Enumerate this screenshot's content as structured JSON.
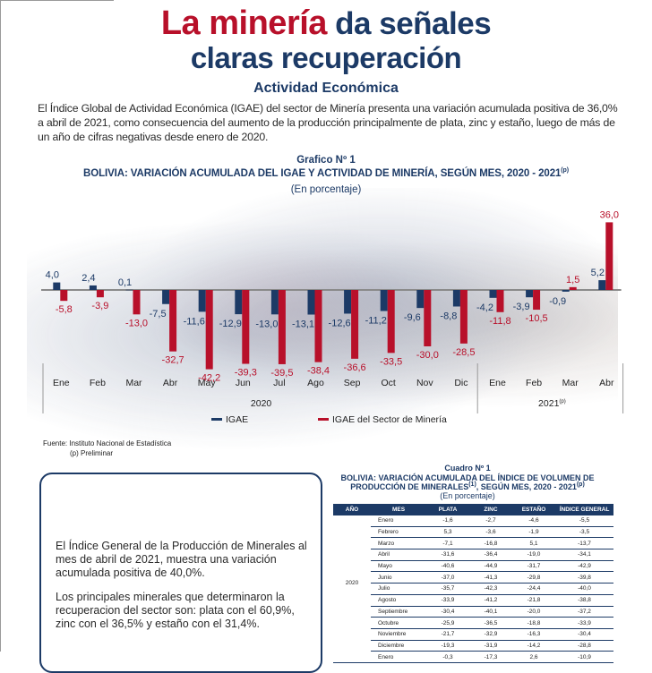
{
  "headline": {
    "highlight": "La minería",
    "rest_line1": "da señales",
    "line2": "claras recuperación"
  },
  "section_title": "Actividad Económica",
  "intro_text": "El Índice Global de Actividad Económica (IGAE) del sector de Minería presenta una variación acumulada positiva de 36,0% a abril de 2021, como consecuencia del aumento de la producción principalmente de plata, zinc y estaño, luego de más de un año de cifras negativas desde enero de 2020.",
  "colors": {
    "navy": "#1c3a66",
    "red": "#b8102a"
  },
  "chart_data": {
    "type": "bar",
    "title": "Grafico Nº 1",
    "subtitle": "BOLIVIA: VARIACIÓN ACUMULADA DEL IGAE Y ACTIVIDAD DE MINERÍA, SEGÚN MES, 2020 - 2021",
    "subtitle_sup": "(p)",
    "unit_label": "(En porcentaje)",
    "categories": [
      "Ene",
      "Feb",
      "Mar",
      "Abr",
      "May",
      "Jun",
      "Jul",
      "Ago",
      "Sep",
      "Oct",
      "Nov",
      "Dic",
      "Ene",
      "Feb",
      "Mar",
      "Abr"
    ],
    "groups": [
      {
        "label": "2020",
        "sup": "",
        "count": 12
      },
      {
        "label": "2021",
        "sup": "(p)",
        "count": 4
      }
    ],
    "series": [
      {
        "name": "IGAE",
        "color": "#1c3a66",
        "values": [
          4.0,
          2.4,
          0.1,
          -7.5,
          -11.6,
          -12.9,
          -13.0,
          -13.1,
          -12.6,
          -11.2,
          -9.6,
          -8.8,
          -4.2,
          -3.9,
          -0.9,
          5.2
        ]
      },
      {
        "name": "IGAE del Sector de Minería",
        "color": "#b8102a",
        "values": [
          -5.8,
          -3.9,
          -13.0,
          -32.7,
          -42.2,
          -39.3,
          -39.5,
          -38.4,
          -36.6,
          -33.5,
          -30.0,
          -28.5,
          -11.8,
          -10.5,
          1.5,
          36.0
        ]
      }
    ],
    "labels": {
      "IGAE": [
        "4,0",
        "2,4",
        "0,1",
        "-7,5",
        "-11,6",
        "-12,9",
        "-13,0",
        "-13,1",
        "-12,6",
        "-11,2",
        "-9,6",
        "-8,8",
        "-4,2",
        "-3,9",
        "-0,9",
        "5,2"
      ],
      "Mineria": [
        "-5,8",
        "-3,9",
        "-13,0",
        "-32,7",
        "-42,2",
        "-39,3",
        "-39,5",
        "-38,4",
        "-36,6",
        "-33,5",
        "-30,0",
        "-28,5",
        "-11,8",
        "-10,5",
        "1,5",
        "36,0"
      ]
    },
    "xlabel": "",
    "ylabel": "",
    "ylim": [
      -45,
      38
    ],
    "grid": false,
    "legend": "bottom"
  },
  "source": {
    "line1": "Fuente: Instituto Nacional de Estadística",
    "line2": "(p) Preliminar"
  },
  "textbox": {
    "para1": "El Índice General de la Producción de Minerales al mes de abril de 2021, muestra una variación acumulada positiva de 40,0%.",
    "para2": "Los principales minerales que determinaron la recuperacion del sector son: plata con el 60,9%, zinc con el 36,5% y estaño con el 31,4%."
  },
  "table": {
    "title": "Cuadro Nº 1",
    "subtitle1": "BOLIVIA: VARIACIÓN ACUMULADA DEL ÍNDICE DE VOLUMEN DE",
    "subtitle2": "PRODUCCIÓN DE MINERALES",
    "subtitle2_sup": "(1)",
    "subtitle2_rest": ", SEGÚN MES, 2020 - 2021",
    "subtitle2_sup2": "(p)",
    "unit": "(En porcentaje)",
    "headers": [
      "AÑO",
      "MES",
      "PLATA",
      "ZINC",
      "ESTAÑO",
      "ÍNDICE GENERAL"
    ],
    "year_2020": "2020",
    "rows": [
      {
        "mes": "Enero",
        "plata": "-1,6",
        "zinc": "-2,7",
        "estano": "-4,6",
        "general": "-5,5"
      },
      {
        "mes": "Febrero",
        "plata": "5,3",
        "zinc": "-3,6",
        "estano": "-1,9",
        "general": "-3,5"
      },
      {
        "mes": "Marzo",
        "plata": "-7,1",
        "zinc": "-16,8",
        "estano": "5,1",
        "general": "-13,7"
      },
      {
        "mes": "Abril",
        "plata": "-31,6",
        "zinc": "-36,4",
        "estano": "-19,0",
        "general": "-34,1"
      },
      {
        "mes": "Mayo",
        "plata": "-40,6",
        "zinc": "-44,9",
        "estano": "-31,7",
        "general": "-42,9"
      },
      {
        "mes": "Junio",
        "plata": "-37,0",
        "zinc": "-41,3",
        "estano": "-29,8",
        "general": "-39,8"
      },
      {
        "mes": "Julio",
        "plata": "-35,7",
        "zinc": "-42,3",
        "estano": "-24,4",
        "general": "-40,0"
      },
      {
        "mes": "Agosto",
        "plata": "-33,9",
        "zinc": "-41,2",
        "estano": "-21,8",
        "general": "-38,8"
      },
      {
        "mes": "Septiembre",
        "plata": "-30,4",
        "zinc": "-40,1",
        "estano": "-20,0",
        "general": "-37,2"
      },
      {
        "mes": "Octubre",
        "plata": "-25,9",
        "zinc": "-36,5",
        "estano": "-18,8",
        "general": "-33,9"
      },
      {
        "mes": "Noviembre",
        "plata": "-21,7",
        "zinc": "-32,9",
        "estano": "-16,3",
        "general": "-30,4"
      },
      {
        "mes": "Diciembre",
        "plata": "-19,3",
        "zinc": "-31,9",
        "estano": "-14,2",
        "general": "-28,8"
      },
      {
        "mes": "Enero",
        "plata": "-0,3",
        "zinc": "-17,3",
        "estano": "2,6",
        "general": "-10,9"
      }
    ]
  }
}
